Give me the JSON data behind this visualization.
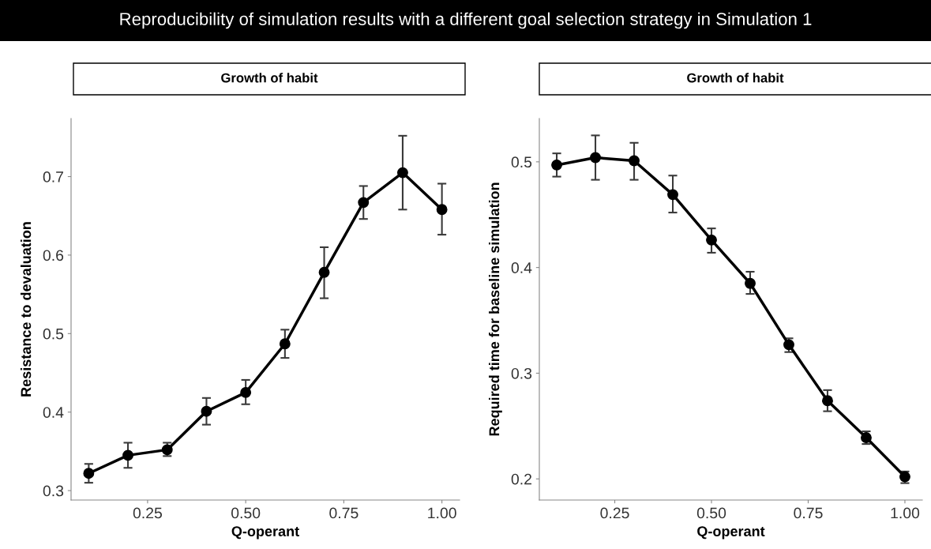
{
  "chart_data": [
    {
      "type": "line",
      "title": "Reproducibility of simulation results with a different goal selection strategy in Simulation 1",
      "subtitle": "Growth of habit",
      "xlabel": "Q-operant",
      "ylabel": "Resistance to devaluation",
      "x": [
        0.1,
        0.2,
        0.3,
        0.4,
        0.5,
        0.6,
        0.7,
        0.8,
        0.9,
        1.0
      ],
      "series": [
        {
          "color": "#000000",
          "values": [
            0.322,
            0.345,
            0.352,
            0.401,
            0.425,
            0.487,
            0.578,
            0.667,
            0.705,
            0.658
          ],
          "errors": [
            [
              0.31,
              0.334
            ],
            [
              0.329,
              0.361
            ],
            [
              0.344,
              0.361
            ],
            [
              0.384,
              0.418
            ],
            [
              0.41,
              0.441
            ],
            [
              0.469,
              0.505
            ],
            [
              0.545,
              0.61
            ],
            [
              0.646,
              0.688
            ],
            [
              0.658,
              0.752
            ],
            [
              0.626,
              0.691
            ]
          ]
        }
      ],
      "xlim": [
        0.055,
        1.045
      ],
      "xticks": [
        {
          "value": 0.25,
          "label": "0.25"
        },
        {
          "value": 0.5,
          "label": "0.50"
        },
        {
          "value": 0.75,
          "label": "0.75"
        },
        {
          "value": 1.0,
          "label": "1.00"
        }
      ],
      "ylim": [
        0.288,
        0.774
      ],
      "yticks": [
        0.3,
        0.4,
        0.5,
        0.6,
        0.7
      ],
      "marker": "circle",
      "line_style": "solid",
      "grid": false,
      "legend": false
    },
    {
      "type": "line",
      "subtitle": "Growth of habit",
      "xlabel": "Q-operant",
      "ylabel": "Required time for baseline simulation",
      "x": [
        0.1,
        0.2,
        0.3,
        0.4,
        0.5,
        0.6,
        0.7,
        0.8,
        0.9,
        1.0
      ],
      "series": [
        {
          "color": "#000000",
          "values": [
            0.497,
            0.504,
            0.501,
            0.469,
            0.426,
            0.385,
            0.327,
            0.274,
            0.239,
            0.202
          ],
          "errors": [
            [
              0.486,
              0.508
            ],
            [
              0.483,
              0.525
            ],
            [
              0.483,
              0.518
            ],
            [
              0.452,
              0.487
            ],
            [
              0.414,
              0.437
            ],
            [
              0.375,
              0.396
            ],
            [
              0.32,
              0.333
            ],
            [
              0.264,
              0.284
            ],
            [
              0.233,
              0.245
            ],
            [
              0.196,
              0.207
            ]
          ]
        }
      ],
      "xlim": [
        0.055,
        1.045
      ],
      "xticks": [
        {
          "value": 0.25,
          "label": "0.25"
        },
        {
          "value": 0.5,
          "label": "0.50"
        },
        {
          "value": 0.75,
          "label": "0.75"
        },
        {
          "value": 1.0,
          "label": "1.00"
        }
      ],
      "ylim": [
        0.18,
        0.541
      ],
      "yticks": [
        0.2,
        0.3,
        0.4,
        0.5
      ],
      "marker": "circle",
      "line_style": "solid",
      "grid": false,
      "legend": false
    }
  ]
}
